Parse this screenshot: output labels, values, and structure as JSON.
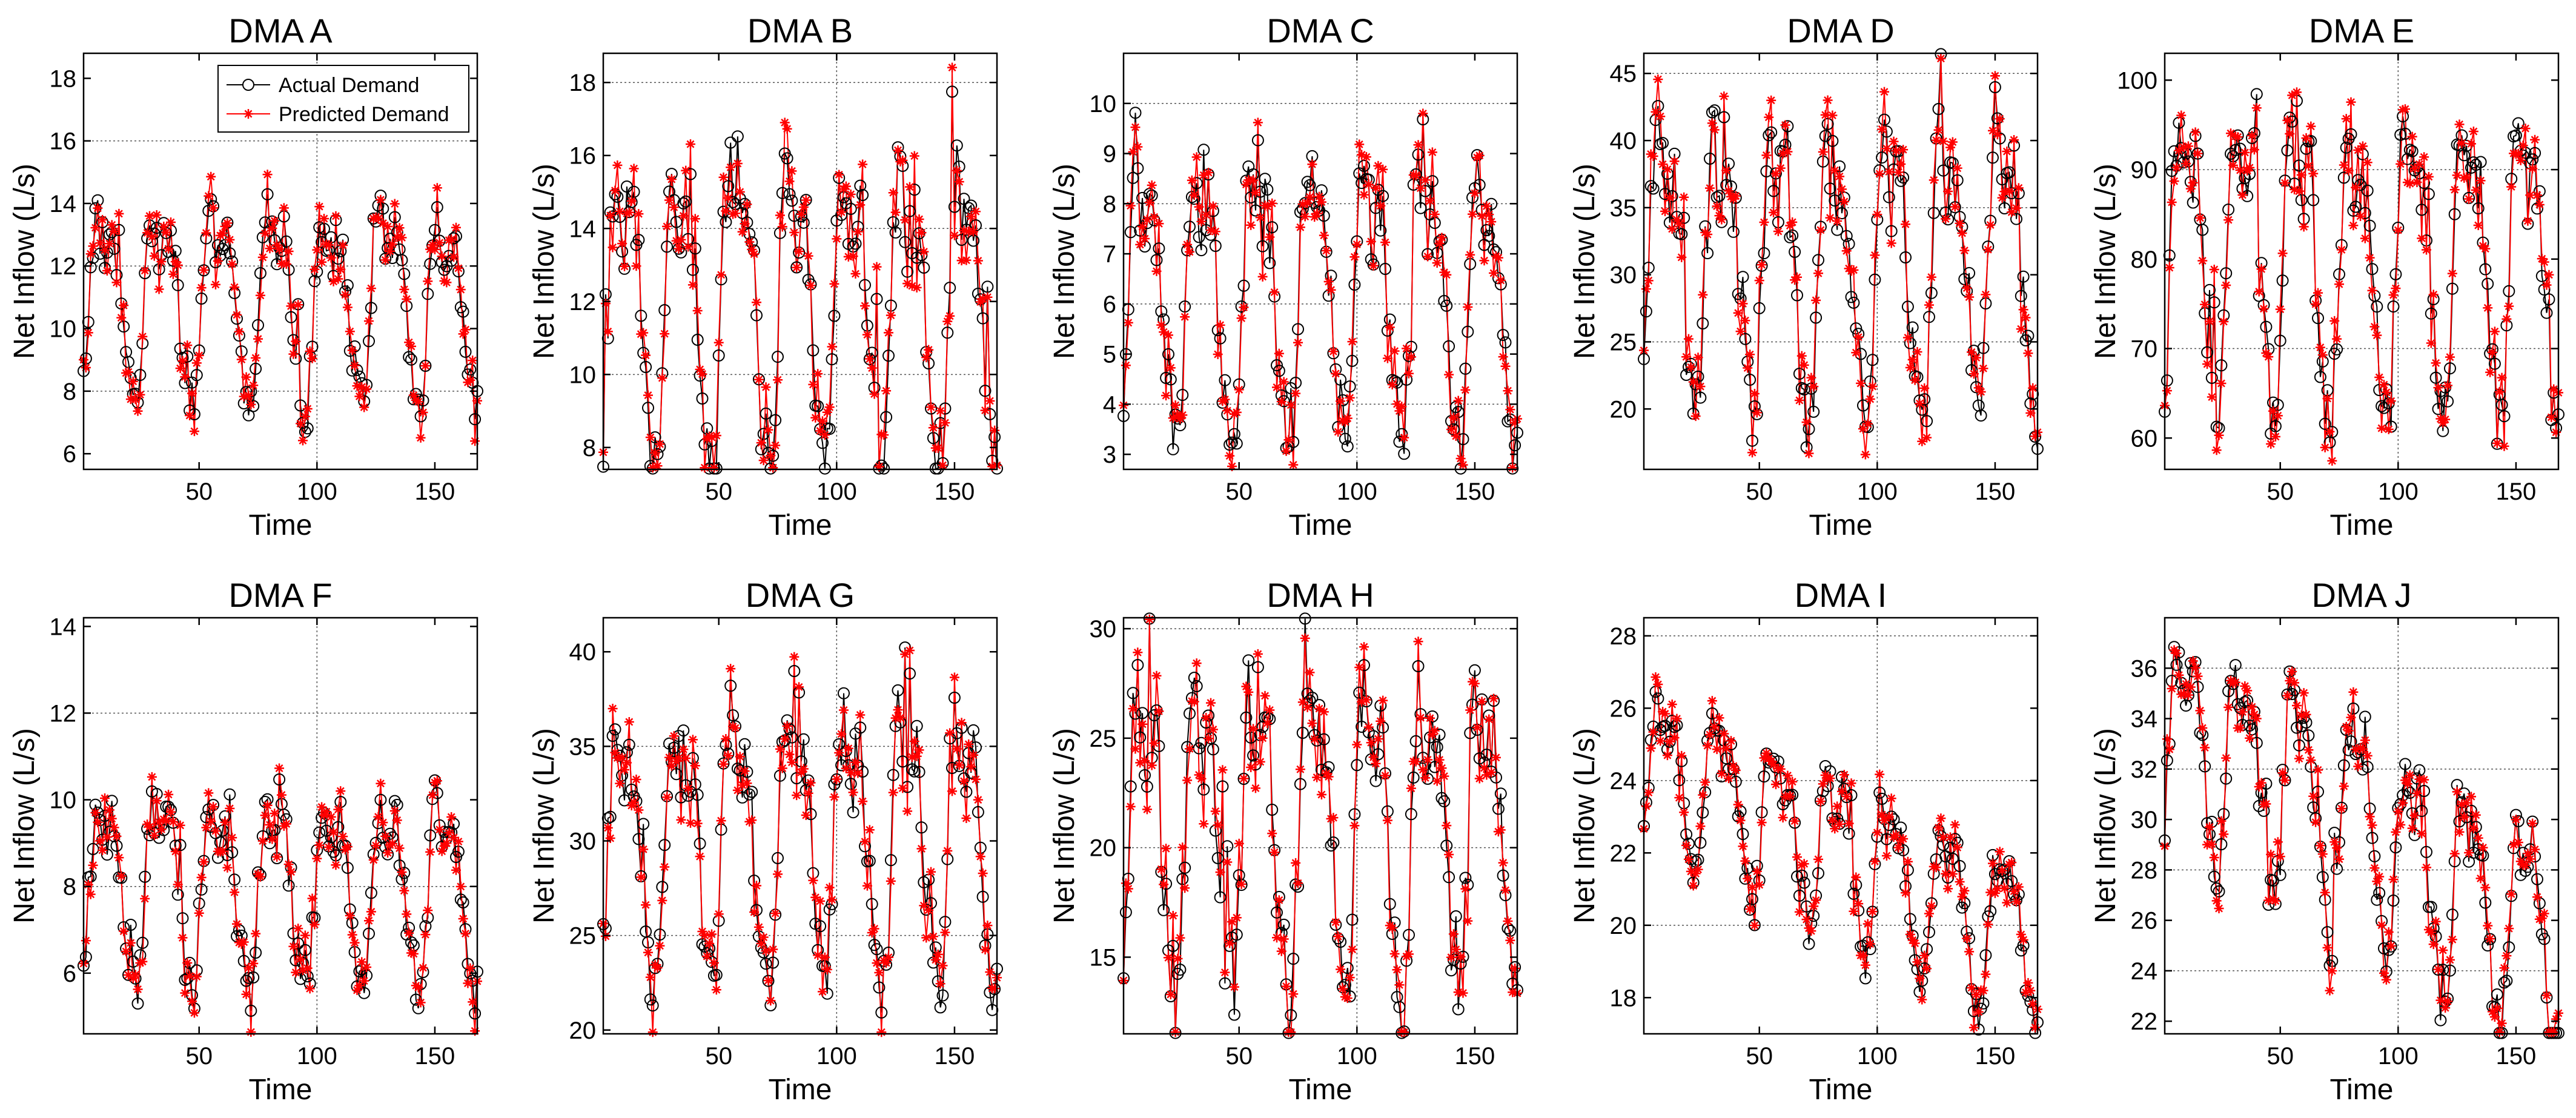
{
  "figure": {
    "xlabel": "Time",
    "ylabel": "Net Inflow (L/s)"
  },
  "legend": {
    "actual": "Actual Demand",
    "predicted": "Predicted Demand"
  },
  "colors": {
    "actual": "#000000",
    "predicted": "#ff0000",
    "axes": "#000000",
    "grid": "#555555",
    "background": "#ffffff"
  },
  "chart_data": [
    {
      "type": "line",
      "title": "DMA A",
      "xlabel": "Time",
      "ylabel": "Net Inflow (L/s)",
      "xlim": [
        1,
        168
      ],
      "ylim": [
        5.5,
        18.8
      ],
      "xticks": [
        50,
        100,
        150
      ],
      "yticks": [
        6,
        8,
        10,
        12,
        14,
        16,
        18
      ],
      "mean": 11,
      "amp": 3.2,
      "lo": 5.5,
      "hi": 18.8,
      "series": [
        {
          "name": "Actual Demand"
        },
        {
          "name": "Predicted Demand"
        }
      ]
    },
    {
      "type": "line",
      "title": "DMA B",
      "xlabel": "Time",
      "ylabel": "Net Inflow (L/s)",
      "xlim": [
        1,
        168
      ],
      "ylim": [
        7.4,
        18.8
      ],
      "xticks": [
        50,
        100,
        150
      ],
      "yticks": [
        8,
        10,
        12,
        14,
        16,
        18
      ],
      "mean": 12,
      "amp": 4.2,
      "lo": 7.4,
      "hi": 18.8,
      "series": [
        {
          "name": "Actual Demand"
        },
        {
          "name": "Predicted Demand"
        }
      ]
    },
    {
      "type": "line",
      "title": "DMA C",
      "xlabel": "Time",
      "ylabel": "Net Inflow (L/s)",
      "xlim": [
        1,
        168
      ],
      "ylim": [
        2.7,
        11.0
      ],
      "xticks": [
        50,
        100,
        150
      ],
      "yticks": [
        3,
        4,
        5,
        6,
        7,
        8,
        9,
        10
      ],
      "mean": 6.2,
      "amp": 2.8,
      "lo": 2.7,
      "hi": 11.0,
      "series": [
        {
          "name": "Actual Demand"
        },
        {
          "name": "Predicted Demand"
        }
      ]
    },
    {
      "type": "line",
      "title": "DMA D",
      "xlabel": "Time",
      "ylabel": "Net Inflow (L/s)",
      "xlim": [
        1,
        168
      ],
      "ylim": [
        15.5,
        46.5
      ],
      "xticks": [
        50,
        100,
        150
      ],
      "yticks": [
        20,
        25,
        30,
        35,
        40,
        45
      ],
      "mean": 31,
      "amp": 11,
      "lo": 15.5,
      "hi": 46.5,
      "series": [
        {
          "name": "Actual Demand"
        },
        {
          "name": "Predicted Demand"
        }
      ]
    },
    {
      "type": "line",
      "title": "DMA E",
      "xlabel": "Time",
      "ylabel": "Net Inflow (L/s)",
      "xlim": [
        1,
        168
      ],
      "ylim": [
        56.5,
        103
      ],
      "xticks": [
        50,
        100,
        150
      ],
      "yticks": [
        60,
        70,
        80,
        90,
        100
      ],
      "mean": 80,
      "amp": 17,
      "lo": 56.5,
      "hi": 103,
      "series": [
        {
          "name": "Actual Demand"
        },
        {
          "name": "Predicted Demand"
        }
      ]
    },
    {
      "type": "line",
      "title": "DMA F",
      "xlabel": "Time",
      "ylabel": "Net Inflow (L/s)",
      "xlim": [
        1,
        168
      ],
      "ylim": [
        4.6,
        14.2
      ],
      "xticks": [
        50,
        100,
        150
      ],
      "yticks": [
        6,
        8,
        10,
        12,
        14
      ],
      "mean": 8,
      "amp": 2.3,
      "lo": 4.6,
      "hi": 14.2,
      "series": [
        {
          "name": "Actual Demand"
        },
        {
          "name": "Predicted Demand"
        }
      ]
    },
    {
      "type": "line",
      "title": "DMA G",
      "xlabel": "Time",
      "ylabel": "Net Inflow (L/s)",
      "xlim": [
        1,
        168
      ],
      "ylim": [
        19.8,
        41.8
      ],
      "xticks": [
        50,
        100,
        150
      ],
      "yticks": [
        20,
        25,
        30,
        35,
        40
      ],
      "mean": 30,
      "amp": 7.5,
      "lo": 19.8,
      "hi": 41.8,
      "series": [
        {
          "name": "Actual Demand"
        },
        {
          "name": "Predicted Demand"
        }
      ]
    },
    {
      "type": "line",
      "title": "DMA H",
      "xlabel": "Time",
      "ylabel": "Net Inflow (L/s)",
      "xlim": [
        1,
        168
      ],
      "ylim": [
        11.5,
        30.5
      ],
      "xticks": [
        50,
        100,
        150
      ],
      "yticks": [
        15,
        20,
        25,
        30
      ],
      "mean": 21,
      "amp": 7.5,
      "lo": 11.5,
      "hi": 30.5,
      "series": [
        {
          "name": "Actual Demand"
        },
        {
          "name": "Predicted Demand"
        }
      ]
    },
    {
      "type": "line",
      "title": "DMA I",
      "xlabel": "Time",
      "ylabel": "Net Inflow (L/s)",
      "xlim": [
        1,
        168
      ],
      "ylim": [
        17,
        28.5
      ],
      "xticks": [
        50,
        100,
        150
      ],
      "yticks": [
        18,
        20,
        22,
        24,
        26,
        28
      ],
      "mean": 22,
      "amp": 2.4,
      "lo": 17,
      "hi": 28.5,
      "trend": -2.5,
      "series": [
        {
          "name": "Actual Demand"
        },
        {
          "name": "Predicted Demand"
        }
      ]
    },
    {
      "type": "line",
      "title": "DMA J",
      "xlabel": "Time",
      "ylabel": "Net Inflow (L/s)",
      "xlim": [
        1,
        168
      ],
      "ylim": [
        21.5,
        38
      ],
      "xticks": [
        50,
        100,
        150
      ],
      "yticks": [
        22,
        24,
        26,
        28,
        30,
        32,
        34,
        36
      ],
      "mean": 29.5,
      "amp": 4.5,
      "lo": 21.5,
      "hi": 38,
      "trend": -4.5,
      "series": [
        {
          "name": "Actual Demand"
        },
        {
          "name": "Predicted Demand"
        }
      ]
    }
  ]
}
